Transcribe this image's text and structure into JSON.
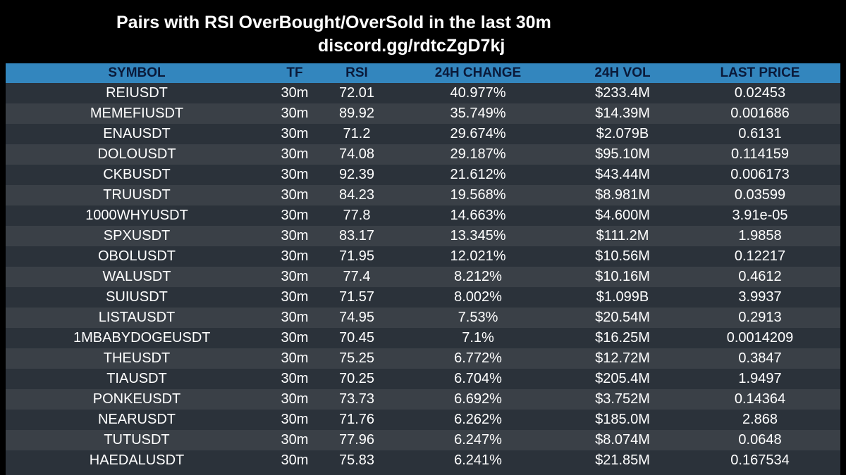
{
  "title": "Pairs with RSI OverBought/OverSold in the last 30m",
  "subtitle": "discord.gg/rdtcZgD7kj",
  "table": {
    "columns": [
      "SYMBOL",
      "TF",
      "RSI",
      "24H CHANGE",
      "24H VOL",
      "LAST PRICE"
    ],
    "rows": [
      {
        "symbol": "REIUSDT",
        "tf": "30m",
        "rsi": "72.01",
        "change": "40.977%",
        "vol": "$233.4M",
        "price": "0.02453"
      },
      {
        "symbol": "MEMEFIUSDT",
        "tf": "30m",
        "rsi": "89.92",
        "change": "35.749%",
        "vol": "$14.39M",
        "price": "0.001686"
      },
      {
        "symbol": "ENAUSDT",
        "tf": "30m",
        "rsi": "71.2",
        "change": "29.674%",
        "vol": "$2.079B",
        "price": "0.6131"
      },
      {
        "symbol": "DOLOUSDT",
        "tf": "30m",
        "rsi": "74.08",
        "change": "29.187%",
        "vol": "$95.10M",
        "price": "0.114159"
      },
      {
        "symbol": "CKBUSDT",
        "tf": "30m",
        "rsi": "92.39",
        "change": "21.612%",
        "vol": "$43.44M",
        "price": "0.006173"
      },
      {
        "symbol": "TRUUSDT",
        "tf": "30m",
        "rsi": "84.23",
        "change": "19.568%",
        "vol": "$8.981M",
        "price": "0.03599"
      },
      {
        "symbol": "1000WHYUSDT",
        "tf": "30m",
        "rsi": "77.8",
        "change": "14.663%",
        "vol": "$4.600M",
        "price": "3.91e-05"
      },
      {
        "symbol": "SPXUSDT",
        "tf": "30m",
        "rsi": "83.17",
        "change": "13.345%",
        "vol": "$111.2M",
        "price": "1.9858"
      },
      {
        "symbol": "OBOLUSDT",
        "tf": "30m",
        "rsi": "71.95",
        "change": "12.021%",
        "vol": "$10.56M",
        "price": "0.12217"
      },
      {
        "symbol": "WALUSDT",
        "tf": "30m",
        "rsi": "77.4",
        "change": "8.212%",
        "vol": "$10.16M",
        "price": "0.4612"
      },
      {
        "symbol": "SUIUSDT",
        "tf": "30m",
        "rsi": "71.57",
        "change": "8.002%",
        "vol": "$1.099B",
        "price": "3.9937"
      },
      {
        "symbol": "LISTAUSDT",
        "tf": "30m",
        "rsi": "74.95",
        "change": "7.53%",
        "vol": "$20.54M",
        "price": "0.2913"
      },
      {
        "symbol": "1MBABYDOGEUSDT",
        "tf": "30m",
        "rsi": "70.45",
        "change": "7.1%",
        "vol": "$16.25M",
        "price": "0.0014209"
      },
      {
        "symbol": "THEUSDT",
        "tf": "30m",
        "rsi": "75.25",
        "change": "6.772%",
        "vol": "$12.72M",
        "price": "0.3847"
      },
      {
        "symbol": "TIAUSDT",
        "tf": "30m",
        "rsi": "70.25",
        "change": "6.704%",
        "vol": "$205.4M",
        "price": "1.9497"
      },
      {
        "symbol": "PONKEUSDT",
        "tf": "30m",
        "rsi": "73.73",
        "change": "6.692%",
        "vol": "$3.752M",
        "price": "0.14364"
      },
      {
        "symbol": "NEARUSDT",
        "tf": "30m",
        "rsi": "71.76",
        "change": "6.262%",
        "vol": "$185.0M",
        "price": "2.868"
      },
      {
        "symbol": "TUTUSDT",
        "tf": "30m",
        "rsi": "77.96",
        "change": "6.247%",
        "vol": "$8.074M",
        "price": "0.0648"
      },
      {
        "symbol": "HAEDALUSDT",
        "tf": "30m",
        "rsi": "75.83",
        "change": "6.241%",
        "vol": "$21.85M",
        "price": "0.167534"
      }
    ]
  },
  "colors": {
    "background": "#000000",
    "header": "#3386be",
    "header_text": "#0a1a3a",
    "row_odd": "#2b323a",
    "row_even": "#3a4047",
    "text": "#ffffff"
  }
}
